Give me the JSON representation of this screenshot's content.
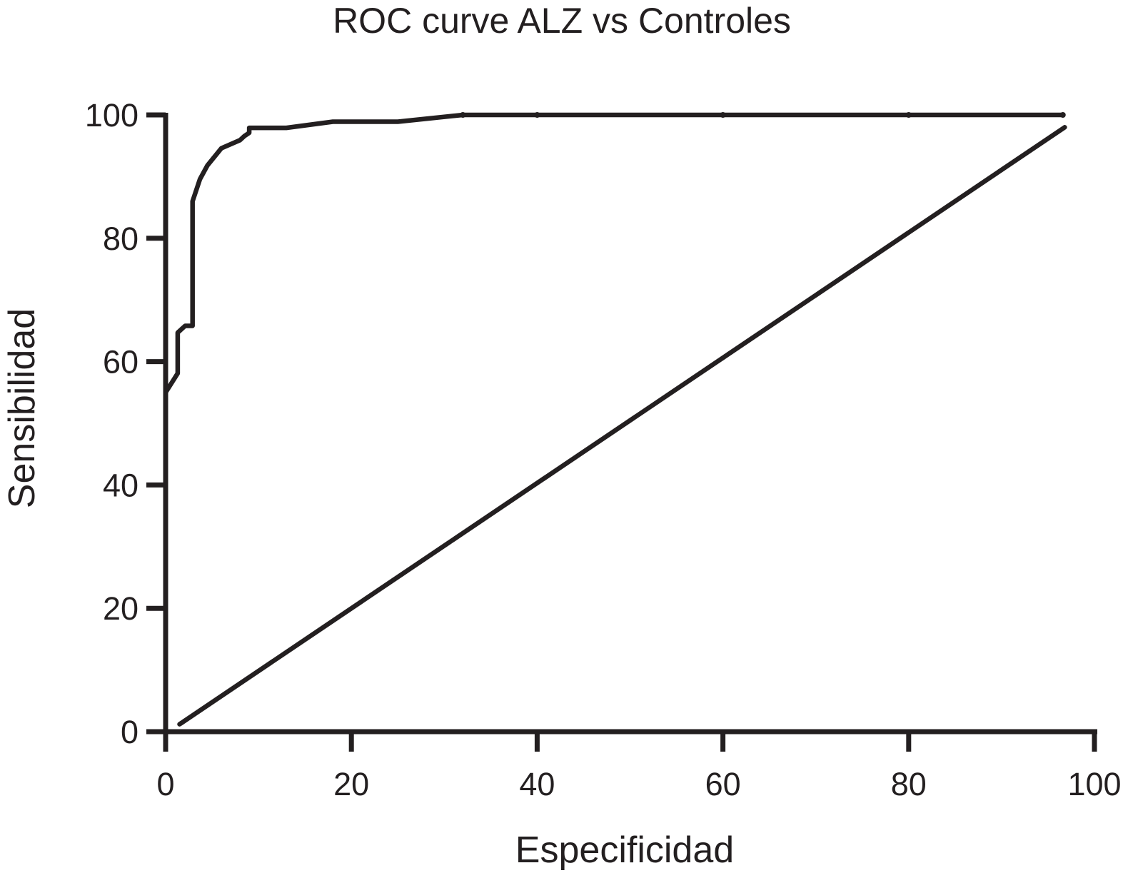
{
  "chart_data": {
    "type": "line",
    "title": "ROC curve ALZ vs Controles",
    "xlabel": "Especificidad",
    "ylabel": "Sensibilidad",
    "xlim": [
      0,
      100
    ],
    "ylim": [
      0,
      100
    ],
    "x_ticks": [
      "0",
      "20",
      "40",
      "60",
      "80",
      "100"
    ],
    "y_ticks": [
      "0",
      "20",
      "40",
      "60",
      "80",
      "100"
    ],
    "grid": false,
    "legend": "none",
    "series": [
      {
        "x": [
          0,
          1.3,
          1.3,
          2.1,
          2.9,
          2.9,
          3.7,
          4.5,
          6,
          8,
          8.5,
          9,
          9,
          13,
          18,
          25,
          32,
          40,
          60,
          80,
          96.6
        ],
        "y": [
          55,
          58.1,
          64.7,
          65.8,
          65.8,
          86,
          89.6,
          91.8,
          94.6,
          95.9,
          96.6,
          97.1,
          97.9,
          97.9,
          98.9,
          98.9,
          100,
          100,
          100,
          100,
          100
        ],
        "color": "#231f20"
      },
      {
        "x": [
          1.5,
          96.8
        ],
        "y": [
          1.2,
          98
        ],
        "color": "#231f20"
      }
    ]
  }
}
